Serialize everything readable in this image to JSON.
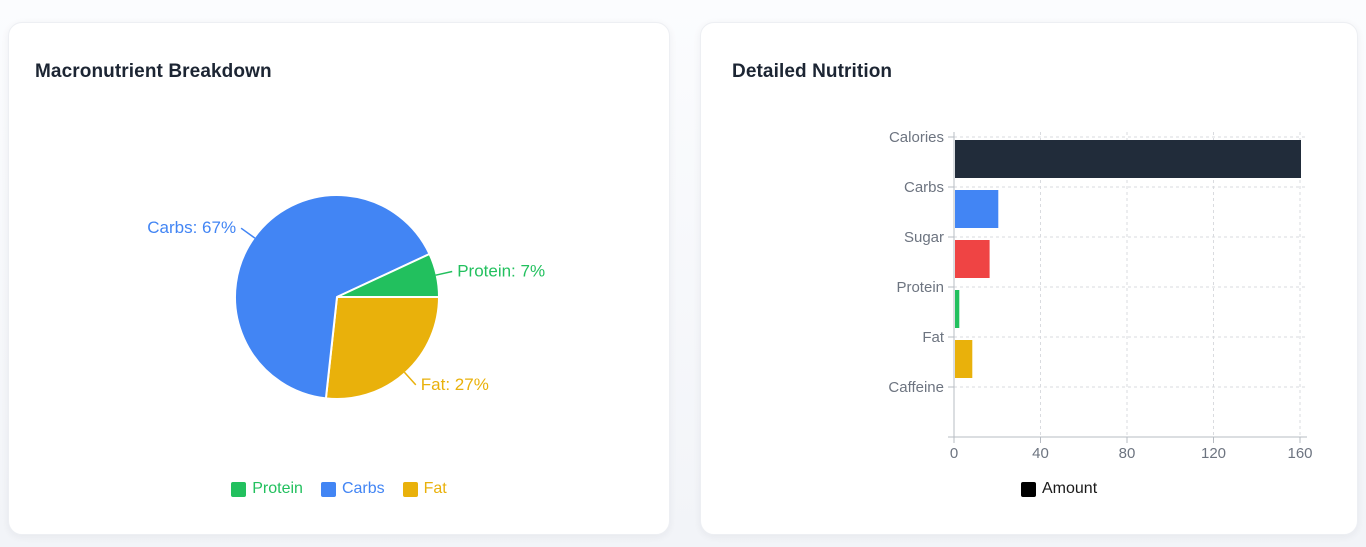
{
  "chart_data": [
    {
      "type": "pie",
      "title": "Macronutrient Breakdown",
      "slices": [
        {
          "label": "Protein",
          "value": 7,
          "color": "#22c05e",
          "callout": "Protein: 7%"
        },
        {
          "label": "Carbs",
          "value": 67,
          "color": "#4285f4",
          "callout": "Carbs: 67%"
        },
        {
          "label": "Fat",
          "value": 27,
          "color": "#e9b10b",
          "callout": "Fat: 27%"
        }
      ],
      "unit": "%",
      "legend_position": "bottom",
      "legend_entries": [
        "Protein",
        "Carbs",
        "Fat"
      ]
    },
    {
      "type": "bar",
      "orientation": "horizontal",
      "title": "Detailed Nutrition",
      "categories": [
        "Calories",
        "Carbs",
        "Sugar",
        "Protein",
        "Fat",
        "Caffeine"
      ],
      "series": [
        {
          "name": "Amount",
          "values": [
            160,
            20,
            16,
            2,
            8,
            0
          ],
          "colors": [
            "#212c3a",
            "#4285f4",
            "#ef4444",
            "#22c05e",
            "#e9b10b",
            null
          ]
        }
      ],
      "xlim": [
        0,
        160
      ],
      "xticks": [
        0,
        40,
        80,
        120,
        160
      ],
      "grid": "dashed",
      "legend": {
        "position": "bottom",
        "entries": [
          {
            "label": "Amount",
            "color": "#000000"
          }
        ]
      }
    }
  ],
  "theme": {
    "card_background": "#ffffff",
    "page_background": "#f3f5f9",
    "title_color": "#1c2533",
    "axis_text_color": "#6d7480",
    "grid_color": "#d9dbdf",
    "axis_line_color": "#b7bcc3",
    "pie_slice_border": "#ffffff"
  }
}
